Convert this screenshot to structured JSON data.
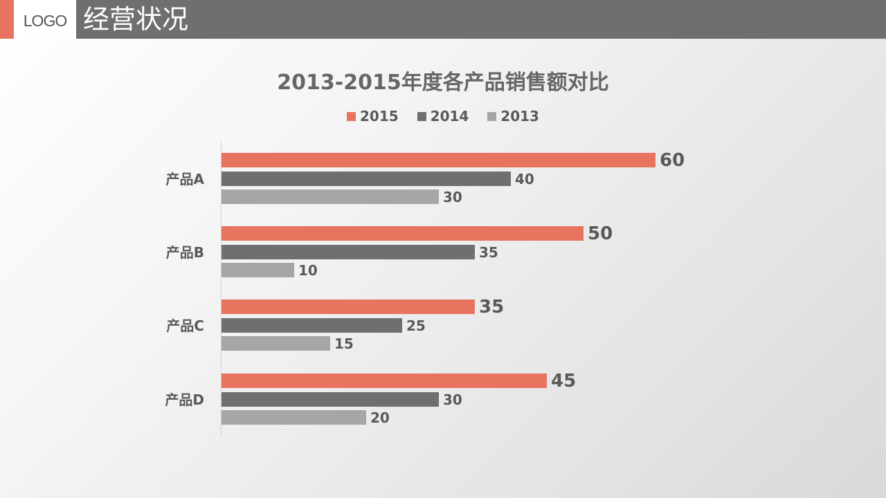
{
  "header": {
    "logo": "LOGO",
    "title": "经营状况",
    "accent_color": "#e8735f",
    "bar_color": "#6f6f71"
  },
  "chart_data": {
    "type": "bar",
    "orientation": "horizontal",
    "title": "2013-2015年度各产品销售额对比",
    "categories": [
      "产品A",
      "产品B",
      "产品C",
      "产品D"
    ],
    "series": [
      {
        "name": "2015",
        "color": "#e8735f",
        "values": [
          60,
          50,
          35,
          45
        ]
      },
      {
        "name": "2014",
        "color": "#6f6f71",
        "values": [
          40,
          35,
          25,
          30
        ]
      },
      {
        "name": "2013",
        "color": "#a6a6a6",
        "values": [
          30,
          10,
          15,
          20
        ]
      }
    ],
    "xlabel": "",
    "ylabel": "",
    "data_labels": true,
    "grid": false,
    "legend_position": "top",
    "xlim": [
      0,
      60
    ]
  }
}
